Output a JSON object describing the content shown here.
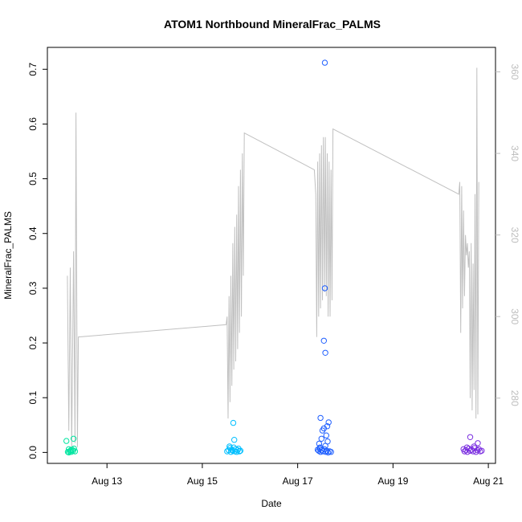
{
  "chart_data": {
    "type": "scatter",
    "title": "ATOM1 Northbound MineralFrac_PALMS",
    "xlabel": "Date",
    "ylabel": "MineralFrac_PALMS",
    "x_ticks": [
      "Aug 13",
      "Aug 15",
      "Aug 17",
      "Aug 19",
      "Aug 21"
    ],
    "x_tick_days": [
      13,
      15,
      17,
      19,
      21
    ],
    "xlim_days": [
      11.75,
      21.15
    ],
    "ylim": [
      -0.02,
      0.74
    ],
    "y_ticks": [
      0.0,
      0.1,
      0.2,
      0.3,
      0.4,
      0.5,
      0.6,
      0.7
    ],
    "y_tick_labels": [
      "0.0",
      "0.1",
      "0.2",
      "0.3",
      "0.4",
      "0.5",
      "0.6",
      "0.7"
    ],
    "y2lim": [
      264,
      366
    ],
    "y2_ticks": [
      280,
      300,
      320,
      340,
      360
    ],
    "y2_tick_labels": [
      "280",
      "300",
      "320",
      "340",
      "360"
    ],
    "grid": false,
    "secondary_line_color": "#c0c0c0",
    "series": [
      {
        "color": "#00e5a0",
        "points": [
          [
            12.15,
            0.021
          ],
          [
            12.3,
            0.025
          ],
          [
            12.2,
            0.0
          ],
          [
            12.22,
            0.002
          ],
          [
            12.25,
            0.001
          ],
          [
            12.27,
            0.005
          ],
          [
            12.29,
            0.003
          ],
          [
            12.31,
            0.007
          ],
          [
            12.18,
            0.001
          ],
          [
            12.24,
            0.004
          ],
          [
            12.33,
            0.002
          ],
          [
            12.2,
            0.006
          ]
        ]
      },
      {
        "color": "#00bfff",
        "points": [
          [
            15.65,
            0.054
          ],
          [
            15.67,
            0.023
          ],
          [
            15.52,
            0.002
          ],
          [
            15.55,
            0.004
          ],
          [
            15.58,
            0.008
          ],
          [
            15.6,
            0.001
          ],
          [
            15.62,
            0.005
          ],
          [
            15.64,
            0.003
          ],
          [
            15.66,
            0.009
          ],
          [
            15.68,
            0.002
          ],
          [
            15.7,
            0.006
          ],
          [
            15.72,
            0.001
          ],
          [
            15.74,
            0.004
          ],
          [
            15.76,
            0.007
          ],
          [
            15.78,
            0.002
          ],
          [
            15.8,
            0.003
          ],
          [
            15.57,
            0.011
          ]
        ]
      },
      {
        "color": "#1f5fff",
        "points": [
          [
            17.57,
            0.712
          ],
          [
            17.57,
            0.3
          ],
          [
            17.55,
            0.204
          ],
          [
            17.58,
            0.182
          ],
          [
            17.48,
            0.063
          ],
          [
            17.65,
            0.055
          ],
          [
            17.62,
            0.048
          ],
          [
            17.55,
            0.044
          ],
          [
            17.52,
            0.04
          ],
          [
            17.6,
            0.031
          ],
          [
            17.5,
            0.025
          ],
          [
            17.63,
            0.02
          ],
          [
            17.45,
            0.016
          ],
          [
            17.58,
            0.012
          ],
          [
            17.42,
            0.005
          ],
          [
            17.44,
            0.003
          ],
          [
            17.46,
            0.007
          ],
          [
            17.48,
            0.001
          ],
          [
            17.5,
            0.004
          ],
          [
            17.53,
            0.002
          ],
          [
            17.56,
            0.006
          ],
          [
            17.59,
            0.001
          ],
          [
            17.61,
            0.003
          ],
          [
            17.64,
            0.0
          ],
          [
            17.67,
            0.002
          ],
          [
            17.7,
            0.001
          ],
          [
            17.47,
            0.009
          ]
        ]
      },
      {
        "color": "#7b2fe0",
        "points": [
          [
            20.62,
            0.028
          ],
          [
            20.78,
            0.017
          ],
          [
            20.48,
            0.006
          ],
          [
            20.5,
            0.002
          ],
          [
            20.53,
            0.004
          ],
          [
            20.56,
            0.001
          ],
          [
            20.59,
            0.007
          ],
          [
            20.62,
            0.003
          ],
          [
            20.65,
            0.005
          ],
          [
            20.68,
            0.002
          ],
          [
            20.71,
            0.008
          ],
          [
            20.74,
            0.001
          ],
          [
            20.77,
            0.004
          ],
          [
            20.8,
            0.006
          ],
          [
            20.83,
            0.002
          ],
          [
            20.86,
            0.003
          ],
          [
            20.55,
            0.009
          ],
          [
            20.7,
            0.011
          ]
        ]
      }
    ],
    "secondary_line": [
      [
        12.17,
        310
      ],
      [
        12.2,
        272
      ],
      [
        12.23,
        312
      ],
      [
        12.26,
        268
      ],
      [
        12.3,
        316
      ],
      [
        12.33,
        269
      ],
      [
        12.35,
        350
      ],
      [
        12.38,
        268
      ],
      [
        12.4,
        295
      ],
      [
        15.5,
        298
      ],
      [
        15.52,
        300
      ],
      [
        15.54,
        275
      ],
      [
        15.56,
        305
      ],
      [
        15.58,
        279
      ],
      [
        15.6,
        310
      ],
      [
        15.62,
        283
      ],
      [
        15.64,
        318
      ],
      [
        15.66,
        287
      ],
      [
        15.68,
        322
      ],
      [
        15.7,
        289
      ],
      [
        15.72,
        325
      ],
      [
        15.74,
        292
      ],
      [
        15.76,
        332
      ],
      [
        15.78,
        296
      ],
      [
        15.8,
        336
      ],
      [
        15.82,
        300
      ],
      [
        15.84,
        340
      ],
      [
        15.86,
        310
      ],
      [
        15.88,
        345
      ],
      [
        17.35,
        336
      ],
      [
        17.38,
        330
      ],
      [
        17.4,
        295
      ],
      [
        17.42,
        338
      ],
      [
        17.44,
        300
      ],
      [
        17.46,
        340
      ],
      [
        17.48,
        302
      ],
      [
        17.5,
        342
      ],
      [
        17.52,
        304
      ],
      [
        17.54,
        344
      ],
      [
        17.56,
        306
      ],
      [
        17.58,
        344
      ],
      [
        17.6,
        305
      ],
      [
        17.62,
        340
      ],
      [
        17.64,
        300
      ],
      [
        17.66,
        338
      ],
      [
        17.68,
        300
      ],
      [
        17.7,
        336
      ],
      [
        17.72,
        304
      ],
      [
        17.74,
        346
      ],
      [
        20.38,
        330
      ],
      [
        20.4,
        333
      ],
      [
        20.42,
        296
      ],
      [
        20.44,
        332
      ],
      [
        20.46,
        302
      ],
      [
        20.48,
        326
      ],
      [
        20.5,
        305
      ],
      [
        20.52,
        320
      ],
      [
        20.54,
        315
      ],
      [
        20.56,
        318
      ],
      [
        20.58,
        312
      ],
      [
        20.6,
        316
      ],
      [
        20.62,
        280
      ],
      [
        20.64,
        318
      ],
      [
        20.66,
        277
      ],
      [
        20.68,
        313
      ],
      [
        20.7,
        282
      ],
      [
        20.72,
        330
      ],
      [
        20.74,
        275
      ],
      [
        20.76,
        361
      ],
      [
        20.78,
        276
      ],
      [
        20.8,
        333
      ]
    ]
  }
}
